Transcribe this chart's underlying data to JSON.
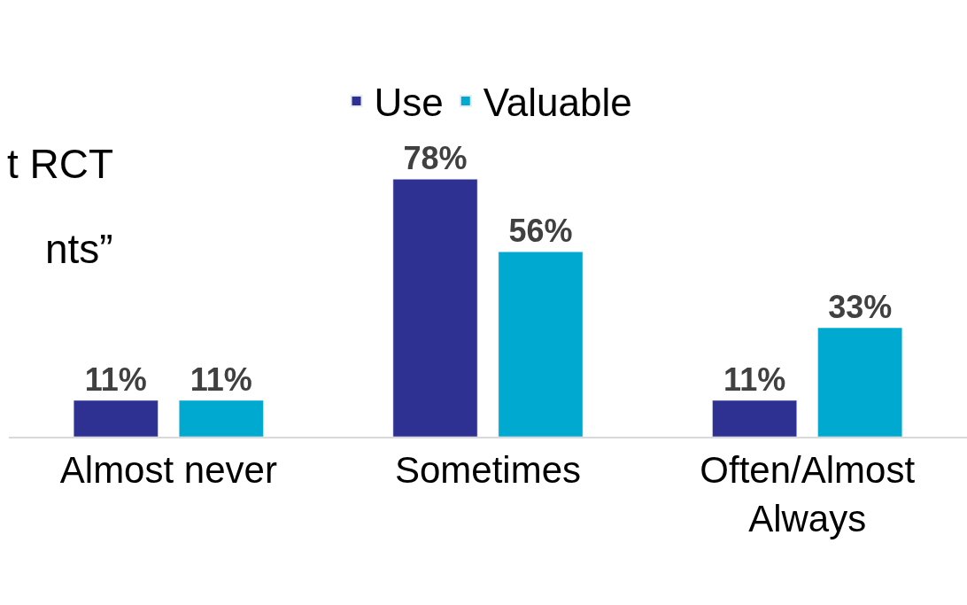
{
  "chart_data": {
    "type": "bar",
    "categories": [
      "Almost never",
      "Sometimes",
      "Often/Almost Always"
    ],
    "series": [
      {
        "name": "Use",
        "color": "#2e3192",
        "values": [
          11,
          78,
          11
        ],
        "value_labels": [
          "11%",
          "78%",
          "11%"
        ]
      },
      {
        "name": "Valuable",
        "color": "#00a9d0",
        "values": [
          11,
          56,
          33
        ],
        "value_labels": [
          "11%",
          "56%",
          "33%"
        ]
      }
    ],
    "annotations": [
      "t RCT",
      "nts”"
    ],
    "legend": "top"
  }
}
